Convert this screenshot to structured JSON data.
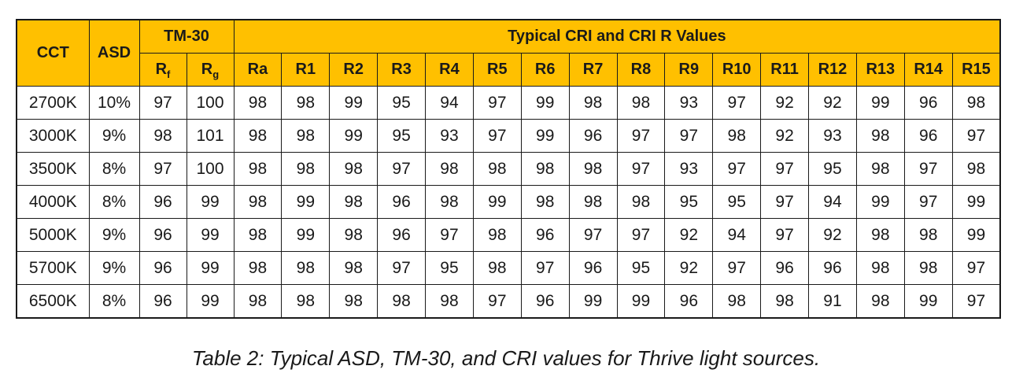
{
  "table": {
    "header": {
      "cct": "CCT",
      "asd": "ASD",
      "tm30_group": "TM-30",
      "cri_group": "Typical CRI and CRI R Values",
      "rf_base": "R",
      "rf_sub": "f",
      "rg_base": "R",
      "rg_sub": "g",
      "cri_cols": [
        "Ra",
        "R1",
        "R2",
        "R3",
        "R4",
        "R5",
        "R6",
        "R7",
        "R8",
        "R9",
        "R10",
        "R11",
        "R12",
        "R13",
        "R14",
        "R15"
      ]
    },
    "rows": [
      {
        "cct": "2700K",
        "asd": "10%",
        "rf": "97",
        "rg": "100",
        "cri": [
          "98",
          "98",
          "99",
          "95",
          "94",
          "97",
          "99",
          "98",
          "98",
          "93",
          "97",
          "92",
          "92",
          "99",
          "96",
          "98"
        ]
      },
      {
        "cct": "3000K",
        "asd": "9%",
        "rf": "98",
        "rg": "101",
        "cri": [
          "98",
          "98",
          "99",
          "95",
          "93",
          "97",
          "99",
          "96",
          "97",
          "97",
          "98",
          "92",
          "93",
          "98",
          "96",
          "97"
        ]
      },
      {
        "cct": "3500K",
        "asd": "8%",
        "rf": "97",
        "rg": "100",
        "cri": [
          "98",
          "98",
          "98",
          "97",
          "98",
          "98",
          "98",
          "98",
          "97",
          "93",
          "97",
          "97",
          "95",
          "98",
          "97",
          "98"
        ]
      },
      {
        "cct": "4000K",
        "asd": "8%",
        "rf": "96",
        "rg": "99",
        "cri": [
          "98",
          "99",
          "98",
          "96",
          "98",
          "99",
          "98",
          "98",
          "98",
          "95",
          "95",
          "97",
          "94",
          "99",
          "97",
          "99"
        ]
      },
      {
        "cct": "5000K",
        "asd": "9%",
        "rf": "96",
        "rg": "99",
        "cri": [
          "98",
          "99",
          "98",
          "96",
          "97",
          "98",
          "96",
          "97",
          "97",
          "92",
          "94",
          "97",
          "92",
          "98",
          "98",
          "99"
        ]
      },
      {
        "cct": "5700K",
        "asd": "9%",
        "rf": "96",
        "rg": "99",
        "cri": [
          "98",
          "98",
          "98",
          "97",
          "95",
          "98",
          "97",
          "96",
          "95",
          "92",
          "97",
          "96",
          "96",
          "98",
          "98",
          "97"
        ]
      },
      {
        "cct": "6500K",
        "asd": "8%",
        "rf": "96",
        "rg": "99",
        "cri": [
          "98",
          "98",
          "98",
          "98",
          "98",
          "97",
          "96",
          "99",
          "99",
          "96",
          "98",
          "98",
          "91",
          "98",
          "99",
          "97"
        ]
      }
    ]
  },
  "caption": "Table 2:  Typical ASD, TM-30, and CRI values for Thrive light sources.",
  "colors": {
    "header_bg": "#ffc000",
    "border": "#1a1a1a"
  }
}
